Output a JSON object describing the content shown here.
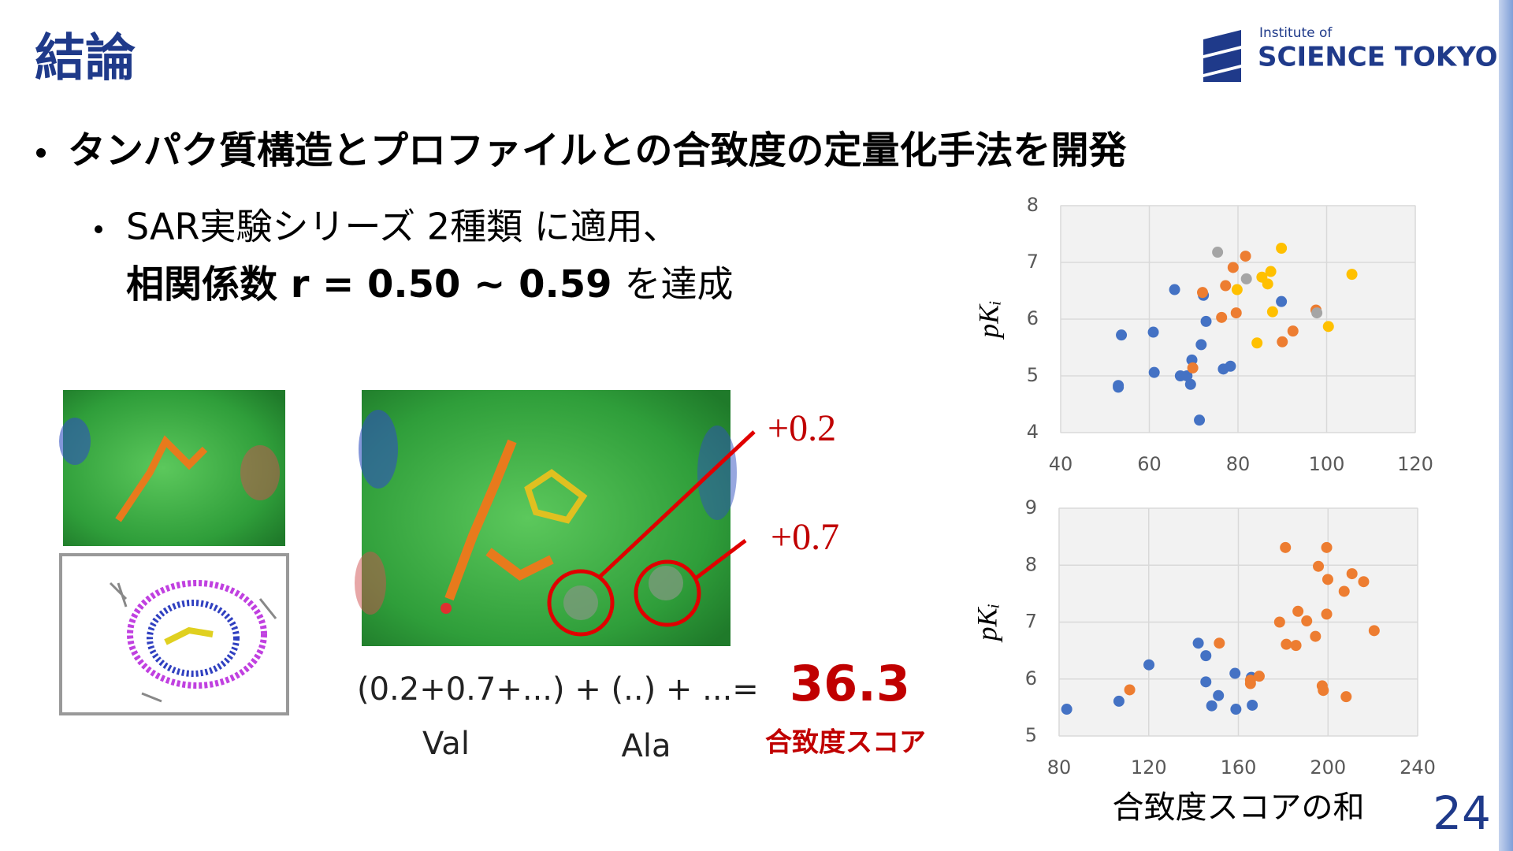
{
  "title": "結論",
  "logo": {
    "line1": "Institute of",
    "line2": "SCIENCE TOKYO"
  },
  "bullets": [
    "タンパク質構造とプロファイルとの合致度の定量化手法を開発",
    {
      "line1": "SAR実験シリーズ 2種類 に適用、",
      "line2_bold": "相関係数 r = 0.50 ~ 0.59",
      "line2_rest": "を達成"
    }
  ],
  "figure": {
    "annotations": [
      "+0.2",
      "+0.7"
    ],
    "formula": "(0.2+0.7+...) + (..) + ...=",
    "score": "36.3",
    "residues": [
      "Val",
      "Ala"
    ],
    "score_label": "合致度スコア"
  },
  "page_number": "24",
  "chart_data": [
    {
      "type": "scatter",
      "y_label": "pKᵢ",
      "xlim": [
        40,
        120
      ],
      "xticks": [
        40,
        60,
        80,
        100,
        120
      ],
      "ylim": [
        4,
        8
      ],
      "yticks": [
        4,
        5,
        6,
        7,
        8
      ],
      "grid": true,
      "series": [
        {
          "color": "#4472c4",
          "x": [
            53.0,
            53.0,
            53.7,
            60.9,
            61.1,
            65.7,
            67.0,
            68.5,
            69.3,
            69.6,
            71.7,
            71.3,
            72.2,
            72.8,
            76.7,
            78.3,
            89.8
          ],
          "values": [
            4.8,
            4.83,
            5.72,
            5.77,
            5.06,
            6.52,
            5.0,
            5.0,
            4.85,
            5.28,
            5.55,
            4.22,
            6.42,
            5.96,
            5.12,
            5.17,
            6.31
          ]
        },
        {
          "color": "#ed7d31",
          "x": [
            69.8,
            72.0,
            76.3,
            77.2,
            78.9,
            79.6,
            81.7,
            90.0,
            92.4,
            97.6
          ],
          "values": [
            5.14,
            6.47,
            6.03,
            6.59,
            6.91,
            6.11,
            7.11,
            5.6,
            5.79,
            6.16
          ]
        },
        {
          "color": "#a5a5a5",
          "x": [
            75.4,
            81.9,
            97.8
          ],
          "values": [
            7.18,
            6.71,
            6.11
          ]
        },
        {
          "color": "#ffc000",
          "x": [
            79.8,
            84.3,
            85.4,
            86.7,
            87.4,
            87.8,
            89.8,
            100.4,
            105.7
          ],
          "values": [
            6.52,
            5.58,
            6.74,
            6.62,
            6.84,
            6.13,
            7.25,
            5.87,
            6.79
          ]
        }
      ]
    },
    {
      "type": "scatter",
      "y_label": "pKᵢ",
      "x_label": "合致度スコアの和",
      "xlim": [
        80,
        240
      ],
      "xticks": [
        80,
        120,
        160,
        200,
        240
      ],
      "ylim": [
        5,
        9
      ],
      "yticks": [
        5,
        6,
        7,
        8,
        9
      ],
      "grid": true,
      "series": [
        {
          "color": "#4472c4",
          "x": [
            83.4,
            106.7,
            120.1,
            142.1,
            145.5,
            145.5,
            148.1,
            151.1,
            158.5,
            158.9,
            165.8,
            166.2
          ],
          "values": [
            5.47,
            5.61,
            6.25,
            6.63,
            6.41,
            5.95,
            5.53,
            5.71,
            6.1,
            5.47,
            6.03,
            5.54
          ]
        },
        {
          "color": "#ed7d31",
          "x": [
            111.5,
            151.5,
            165.4,
            165.4,
            169.3,
            181.0,
            178.4,
            181.4,
            185.7,
            186.6,
            190.5,
            194.4,
            195.7,
            197.4,
            197.9,
            199.4,
            199.9,
            199.4,
            207.2,
            210.7,
            215.9,
            208.1,
            220.6
          ],
          "values": [
            5.81,
            6.63,
            5.92,
            5.98,
            6.05,
            8.31,
            7.0,
            6.61,
            6.59,
            7.19,
            7.02,
            6.75,
            7.98,
            5.88,
            5.8,
            8.31,
            7.75,
            7.14,
            7.54,
            7.85,
            7.71,
            5.69,
            6.85
          ]
        }
      ]
    }
  ]
}
